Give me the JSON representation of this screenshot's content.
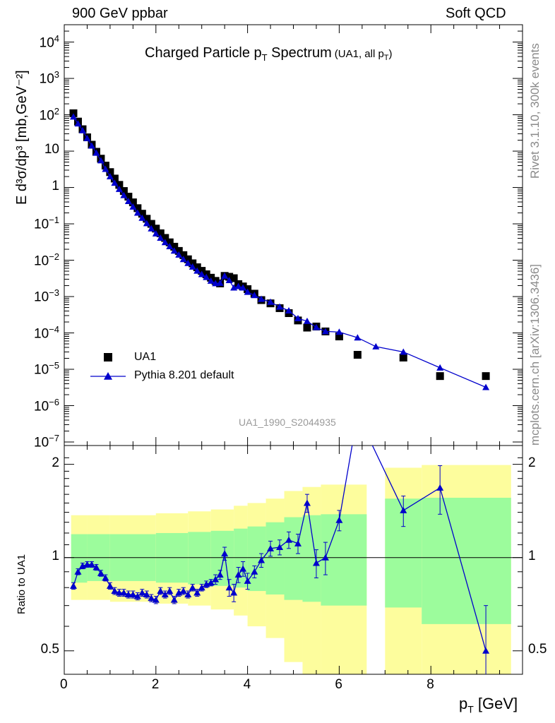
{
  "header": {
    "left": "900 GeV ppbar",
    "right": "Soft QCD"
  },
  "side_labels": {
    "rivet": "Rivet 3.1.10,  300k events",
    "mcplots": "mcplots.cern.ch [arXiv:1306.3436]"
  },
  "chart_data": [
    {
      "type": "scatter",
      "panel": "main",
      "title_main": "Charged Particle p",
      "title_sub": "T",
      "title_tail": " Spectrum",
      "title_extra": "(UA1, all p",
      "title_extra_sub": "T",
      "title_extra_tail": ")",
      "ylabel": "E d³σ/dp³ [mb,GeV⁻²]",
      "yscale": "log",
      "ylim": [
        8e-08,
        30000.0
      ],
      "xlim": [
        0,
        10
      ],
      "watermark": "UA1_1990_S2044935",
      "y_tick_labels": [
        {
          "exp": -7,
          "text": "10",
          "sup": "−7"
        },
        {
          "exp": -6,
          "text": "10",
          "sup": "−6"
        },
        {
          "exp": -5,
          "text": "10",
          "sup": "−5"
        },
        {
          "exp": -4,
          "text": "10",
          "sup": "−4"
        },
        {
          "exp": -3,
          "text": "10",
          "sup": "−3"
        },
        {
          "exp": -2,
          "text": "10",
          "sup": "−2"
        },
        {
          "exp": -1,
          "text": "10",
          "sup": "−1"
        },
        {
          "exp": 0,
          "text": "1",
          "sup": ""
        },
        {
          "exp": 1,
          "text": "10",
          "sup": ""
        },
        {
          "exp": 2,
          "text": "10",
          "sup": "2"
        },
        {
          "exp": 3,
          "text": "10",
          "sup": "3"
        },
        {
          "exp": 4,
          "text": "10",
          "sup": "4"
        }
      ],
      "legend": [
        {
          "name": "UA1",
          "marker": "square",
          "color": "#000000"
        },
        {
          "name": "Pythia 8.201 default",
          "marker": "triangle",
          "color": "#0000cc"
        }
      ],
      "series": [
        {
          "name": "UA1",
          "x": [
            0.2,
            0.3,
            0.4,
            0.5,
            0.6,
            0.7,
            0.8,
            0.9,
            1.0,
            1.1,
            1.2,
            1.3,
            1.4,
            1.5,
            1.6,
            1.7,
            1.8,
            1.9,
            2.0,
            2.1,
            2.2,
            2.3,
            2.4,
            2.5,
            2.6,
            2.7,
            2.8,
            2.9,
            3.0,
            3.1,
            3.2,
            3.3,
            3.4,
            3.5,
            3.6,
            3.7,
            3.8,
            3.9,
            4.0,
            4.15,
            4.3,
            4.5,
            4.7,
            4.9,
            5.1,
            5.3,
            5.5,
            5.7,
            6.0,
            6.4,
            7.4,
            8.2,
            9.2
          ],
          "y": [
            110,
            65,
            40,
            24,
            15,
            9.6,
            6.2,
            4.0,
            2.65,
            1.76,
            1.18,
            0.8,
            0.56,
            0.39,
            0.27,
            0.19,
            0.138,
            0.1,
            0.074,
            0.055,
            0.041,
            0.031,
            0.0235,
            0.018,
            0.0138,
            0.0106,
            0.0082,
            0.0064,
            0.0051,
            0.0041,
            0.0033,
            0.0027,
            0.0023,
            0.0037,
            0.0035,
            0.0032,
            0.0022,
            0.0019,
            0.0016,
            0.0012,
            0.0008,
            0.00065,
            0.00048,
            0.00035,
            0.00022,
            0.00014,
            0.00015,
            0.00011,
            8e-05,
            2.5e-05,
            2.1e-05,
            6.5e-06,
            6.5e-06
          ]
        },
        {
          "name": "Pythia 8.201 default",
          "x": [
            0.2,
            0.3,
            0.4,
            0.5,
            0.6,
            0.7,
            0.8,
            0.9,
            1.0,
            1.1,
            1.2,
            1.3,
            1.4,
            1.5,
            1.6,
            1.7,
            1.8,
            1.9,
            2.0,
            2.1,
            2.2,
            2.3,
            2.4,
            2.5,
            2.6,
            2.7,
            2.8,
            2.9,
            3.0,
            3.1,
            3.2,
            3.3,
            3.4,
            3.5,
            3.6,
            3.7,
            3.8,
            3.9,
            4.0,
            4.15,
            4.3,
            4.5,
            4.7,
            4.9,
            5.1,
            5.3,
            5.5,
            5.7,
            6.0,
            6.4,
            6.8,
            7.4,
            8.2,
            9.2
          ],
          "y": [
            88,
            57,
            37,
            22.5,
            14,
            8.9,
            5.5,
            3.2,
            2.0,
            1.33,
            0.9,
            0.61,
            0.42,
            0.295,
            0.2,
            0.145,
            0.103,
            0.074,
            0.054,
            0.041,
            0.031,
            0.024,
            0.0181,
            0.0141,
            0.0106,
            0.0083,
            0.0066,
            0.0051,
            0.0041,
            0.0034,
            0.0027,
            0.0023,
            0.00235,
            0.0037,
            0.0028,
            0.00175,
            0.00192,
            0.00175,
            0.00133,
            0.00108,
            0.00085,
            0.00071,
            0.00052,
            0.00041,
            0.00025,
            0.00021,
            0.000142,
            0.00011,
            0.000106,
            7.4e-05,
            4.2e-05,
            3e-05,
            1.1e-05,
            3.2e-06
          ]
        }
      ]
    },
    {
      "type": "line",
      "panel": "ratio",
      "ylabel": "Ratio to UA1",
      "xlabel_main": "p",
      "xlabel_sub": "T",
      "xlabel_tail": " [GeV]",
      "yscale": "log",
      "ylim": [
        0.42,
        2.3
      ],
      "xlim": [
        0,
        10
      ],
      "x_ticks": [
        0,
        2,
        4,
        6,
        8
      ],
      "y_ticks": [
        0.5,
        1,
        2
      ],
      "y_tick_labels": [
        "0.5",
        "1",
        "2"
      ],
      "band_colors": {
        "inner": "#9cfc9c",
        "outer": "#fdfd9d"
      },
      "bands": [
        {
          "x0": 0.15,
          "x1": 0.5,
          "inner": [
            0.83,
            1.19
          ],
          "outer": [
            0.73,
            1.37
          ]
        },
        {
          "x0": 0.5,
          "x1": 1.0,
          "inner": [
            0.84,
            1.19
          ],
          "outer": [
            0.73,
            1.37
          ]
        },
        {
          "x0": 1.0,
          "x1": 2.0,
          "inner": [
            0.84,
            1.19
          ],
          "outer": [
            0.72,
            1.37
          ]
        },
        {
          "x0": 2.0,
          "x1": 2.7,
          "inner": [
            0.83,
            1.2
          ],
          "outer": [
            0.71,
            1.39
          ]
        },
        {
          "x0": 2.7,
          "x1": 3.2,
          "inner": [
            0.82,
            1.21
          ],
          "outer": [
            0.7,
            1.41
          ]
        },
        {
          "x0": 3.2,
          "x1": 3.7,
          "inner": [
            0.81,
            1.22
          ],
          "outer": [
            0.68,
            1.43
          ]
        },
        {
          "x0": 3.7,
          "x1": 4.0,
          "inner": [
            0.8,
            1.24
          ],
          "outer": [
            0.65,
            1.47
          ]
        },
        {
          "x0": 4.0,
          "x1": 4.4,
          "inner": [
            0.78,
            1.26
          ],
          "outer": [
            0.6,
            1.5
          ]
        },
        {
          "x0": 4.4,
          "x1": 4.8,
          "inner": [
            0.76,
            1.3
          ],
          "outer": [
            0.55,
            1.55
          ]
        },
        {
          "x0": 4.8,
          "x1": 5.2,
          "inner": [
            0.73,
            1.35
          ],
          "outer": [
            0.46,
            1.64
          ]
        },
        {
          "x0": 5.2,
          "x1": 5.6,
          "inner": [
            0.72,
            1.37
          ],
          "outer": [
            0.42,
            1.69
          ]
        },
        {
          "x0": 5.6,
          "x1": 6.6,
          "inner": [
            0.7,
            1.38
          ],
          "outer": [
            0.42,
            1.72
          ]
        },
        {
          "x0": 7.0,
          "x1": 7.8,
          "inner": [
            0.69,
            1.55
          ],
          "outer": [
            0.42,
            1.95
          ]
        },
        {
          "x0": 7.8,
          "x1": 9.75,
          "inner": [
            0.61,
            1.56
          ],
          "outer": [
            0.42,
            1.99
          ]
        }
      ],
      "series": [
        {
          "name": "Pythia 8.201 default",
          "x": [
            0.2,
            0.3,
            0.4,
            0.5,
            0.6,
            0.7,
            0.8,
            0.9,
            1.0,
            1.1,
            1.2,
            1.3,
            1.4,
            1.5,
            1.6,
            1.7,
            1.8,
            1.9,
            2.0,
            2.1,
            2.2,
            2.3,
            2.4,
            2.5,
            2.6,
            2.7,
            2.8,
            2.9,
            3.0,
            3.1,
            3.2,
            3.3,
            3.4,
            3.5,
            3.6,
            3.7,
            3.8,
            3.9,
            4.0,
            4.15,
            4.3,
            4.5,
            4.7,
            4.9,
            5.1,
            5.3,
            5.5,
            5.7,
            6.0,
            6.4,
            7.4,
            8.2,
            9.2
          ],
          "y": [
            0.81,
            0.9,
            0.94,
            0.95,
            0.95,
            0.93,
            0.89,
            0.86,
            0.81,
            0.78,
            0.77,
            0.77,
            0.76,
            0.76,
            0.75,
            0.77,
            0.76,
            0.74,
            0.73,
            0.78,
            0.76,
            0.78,
            0.73,
            0.77,
            0.78,
            0.76,
            0.8,
            0.77,
            0.8,
            0.82,
            0.83,
            0.85,
            0.88,
            1.03,
            0.8,
            0.77,
            0.88,
            0.92,
            0.84,
            0.9,
            0.98,
            1.07,
            1.08,
            1.14,
            1.11,
            1.5,
            0.96,
            1.0,
            1.32,
            2.9,
            1.42,
            1.68,
            0.5
          ],
          "err": [
            0.02,
            0.02,
            0.02,
            0.02,
            0.02,
            0.02,
            0.02,
            0.02,
            0.02,
            0.02,
            0.02,
            0.02,
            0.02,
            0.02,
            0.02,
            0.02,
            0.02,
            0.02,
            0.02,
            0.02,
            0.02,
            0.02,
            0.02,
            0.02,
            0.02,
            0.02,
            0.02,
            0.02,
            0.02,
            0.02,
            0.02,
            0.03,
            0.03,
            0.05,
            0.05,
            0.05,
            0.05,
            0.05,
            0.05,
            0.04,
            0.05,
            0.06,
            0.06,
            0.07,
            0.08,
            0.1,
            0.1,
            0.12,
            0.1,
            0.3,
            0.16,
            0.3,
            0.2
          ]
        }
      ]
    }
  ]
}
